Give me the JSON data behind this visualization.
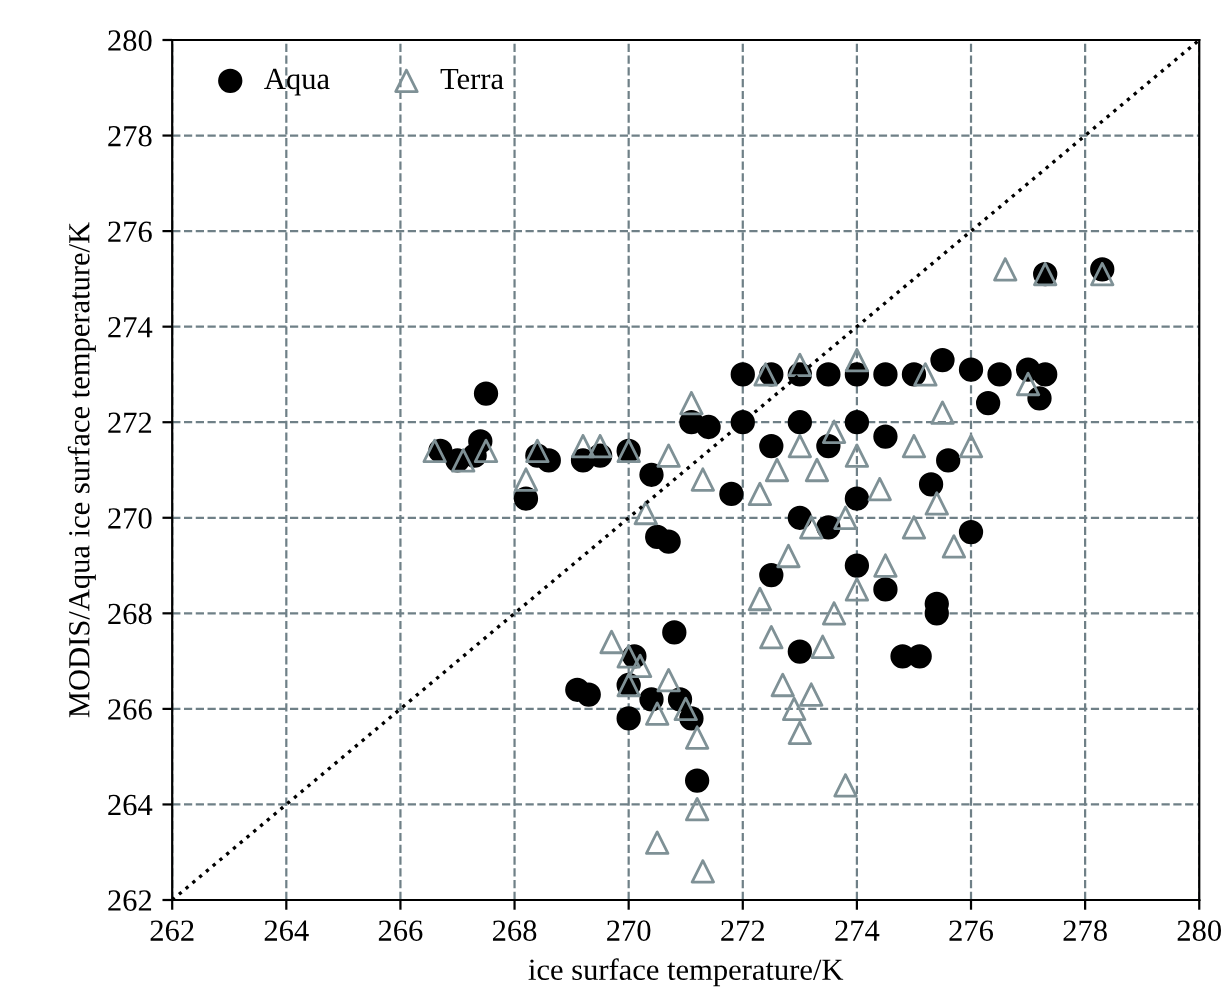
{
  "chart_data": {
    "type": "scatter",
    "xlabel": "ice surface temperature/K",
    "ylabel": "MODIS/Aqua ice surface temperature/K",
    "xlim": [
      262,
      280
    ],
    "ylim": [
      262,
      280
    ],
    "xticks": [
      262,
      264,
      266,
      268,
      270,
      272,
      274,
      276,
      278,
      280
    ],
    "yticks": [
      262,
      264,
      266,
      268,
      270,
      272,
      274,
      276,
      278,
      280
    ],
    "grid": true,
    "legend": "top left",
    "series": [
      {
        "name": "Aqua",
        "color": "#000000",
        "marker": "circle",
        "x": [
          266.7,
          267.0,
          267.3,
          267.4,
          267.5,
          268.2,
          268.4,
          268.6,
          269.2,
          269.5,
          270.0,
          270.4,
          270.5,
          270.7,
          269.1,
          269.3,
          270.0,
          270.1,
          270.0,
          270.4,
          270.8,
          270.9,
          271.1,
          271.2,
          271.1,
          271.4,
          272,
          272.5,
          273,
          273.5,
          274,
          274.5,
          275,
          275.5,
          276,
          276.5,
          277,
          277.3,
          277.3,
          278.3,
          277.2,
          276.3,
          275.6,
          275.3,
          274.0,
          273.5,
          274.5,
          274.8,
          275.1,
          275.4,
          275.4,
          276.0,
          273.0,
          272.5,
          271.8,
          272,
          272.5,
          273,
          273.5,
          274,
          274.5,
          273,
          274
        ],
        "values": [
          271.4,
          271.2,
          271.3,
          271.6,
          272.6,
          270.4,
          271.3,
          271.2,
          271.2,
          271.3,
          271.4,
          270.9,
          269.6,
          269.5,
          266.4,
          266.3,
          265.8,
          267.1,
          266.5,
          266.2,
          267.6,
          266.2,
          265.8,
          264.5,
          272.0,
          271.9,
          273,
          273,
          273,
          273,
          273,
          273,
          273,
          273.3,
          273.1,
          273,
          273.1,
          273,
          275.1,
          275.2,
          272.5,
          272.4,
          271.2,
          270.7,
          270.4,
          269.8,
          268.5,
          267.1,
          267.1,
          268.0,
          268.2,
          269.7,
          267.2,
          268.8,
          270.5,
          272,
          271.5,
          272,
          271.5,
          272,
          271.7,
          270,
          269
        ]
      },
      {
        "name": "Terra",
        "color": "#7f9196",
        "marker": "triangle",
        "x": [
          266.6,
          267.1,
          267.5,
          268.2,
          268.4,
          269.2,
          269.5,
          270.0,
          270.3,
          270.7,
          271.1,
          271.3,
          269.7,
          270.0,
          270.2,
          270.5,
          270.0,
          270.7,
          271.0,
          271.2,
          270.5,
          271.2,
          271.3,
          273.8,
          272.3,
          272.5,
          272.7,
          272.9,
          273.0,
          273.2,
          273.4,
          273.6,
          274.0,
          274.5,
          275.0,
          275.4,
          275.7,
          276,
          277,
          276.6,
          277.3,
          278.3,
          275.2,
          274,
          273,
          272.4,
          272.3,
          272.6,
          273,
          273.3,
          273.6,
          274,
          274.4,
          273.2,
          272.8,
          273.8,
          275,
          275.5
        ],
        "values": [
          271.4,
          271.2,
          271.4,
          270.8,
          271.4,
          271.5,
          271.5,
          271.4,
          270.1,
          271.3,
          272.4,
          270.8,
          267.4,
          267.1,
          266.9,
          265.9,
          266.5,
          266.6,
          266.0,
          265.4,
          263.2,
          263.9,
          262.6,
          264.4,
          268.3,
          267.5,
          266.5,
          266.0,
          265.5,
          266.3,
          267.3,
          268.0,
          268.5,
          269.0,
          269.8,
          270.3,
          269.4,
          271.5,
          272.8,
          275.2,
          275.1,
          275.1,
          273,
          273.3,
          273.2,
          273,
          270.5,
          271,
          271.5,
          271,
          271.8,
          271.3,
          270.6,
          269.8,
          269.2,
          270,
          271.5,
          272.2
        ]
      },
      {
        "type": "line",
        "color": "#000000",
        "line_style": "dotted",
        "marker": "none",
        "x": [
          262,
          280
        ],
        "values": [
          262,
          280
        ]
      }
    ]
  }
}
